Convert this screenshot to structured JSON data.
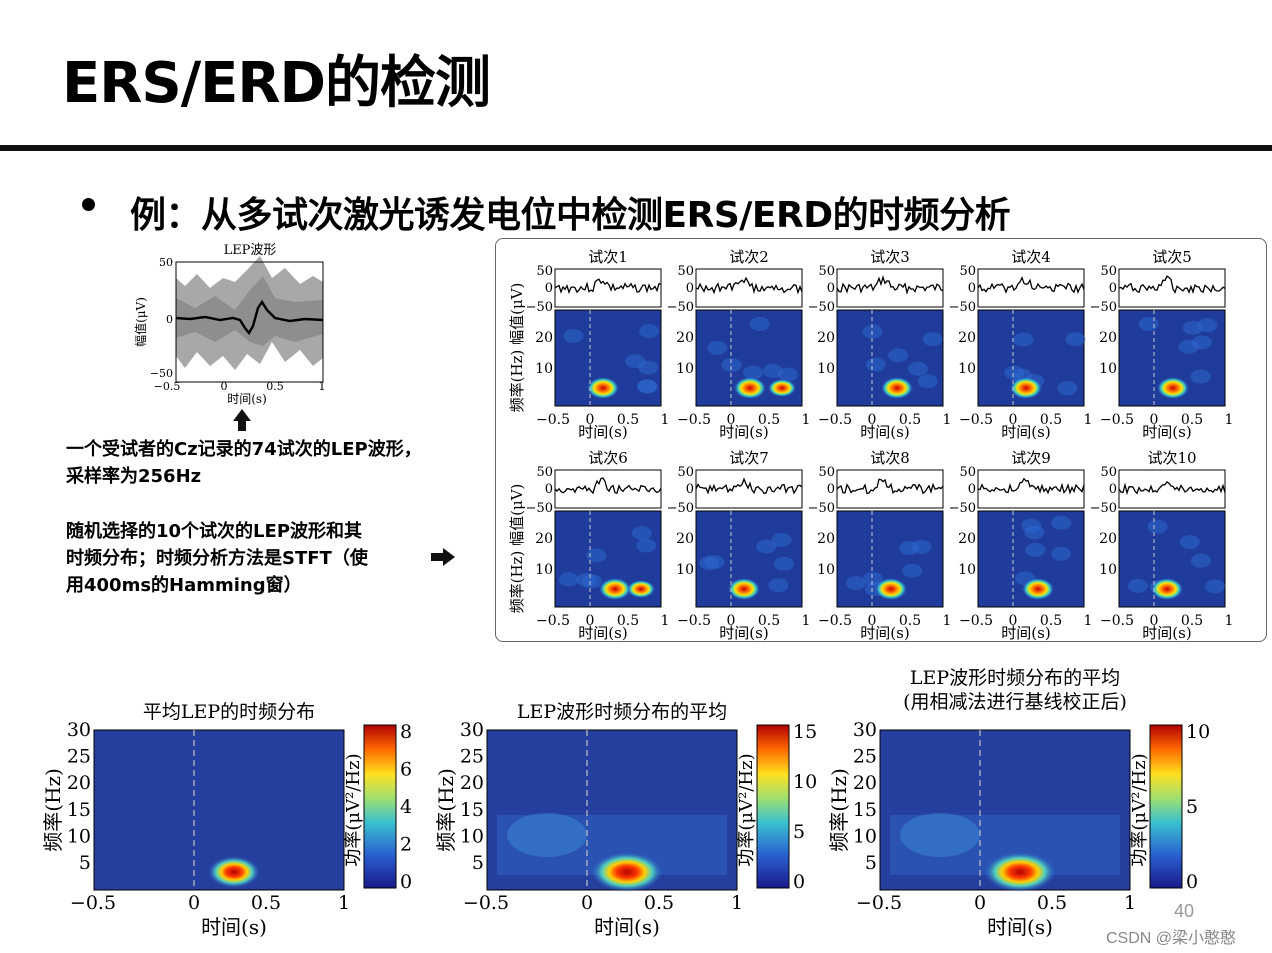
{
  "slide": {
    "title": "ERS/ERD的检测",
    "bullet": "例：从多试次激光诱发电位中检测ERS/ERD的时频分析",
    "note1_line1": "一个受试者的Cz记录的74试次的LEP波形，",
    "note1_line2": "采样率为256Hz",
    "note2_line1": "随机选择的10个试次的LEP波形和其",
    "note2_line2": "时频分布；时频分析方法是STFT（使",
    "note2_line3": "用400ms的Hamming窗）",
    "page_number": "40",
    "watermark": "CSDN @梁小憨憨"
  },
  "lep_plot": {
    "title": "LEP波形",
    "ylabel": "幅值(μV)",
    "xlabel": "时间(s)",
    "yticks": [
      "50",
      "0",
      "−50"
    ],
    "xticks": [
      "−0.5",
      "0",
      "0.5",
      "1"
    ]
  },
  "trials": {
    "titles": [
      "试次1",
      "试次2",
      "试次3",
      "试次4",
      "试次5",
      "试次6",
      "试次7",
      "试次8",
      "试次9",
      "试次10"
    ],
    "amp_yticks": [
      "50",
      "0",
      "−50"
    ],
    "freq_yticks": [
      "20",
      "10"
    ],
    "xticks": [
      "−0.5",
      "0",
      "0.5",
      "1"
    ],
    "xlabel": "时间(s)",
    "ylabel_amp": "幅值(μV)",
    "ylabel_freq": "频率(Hz)"
  },
  "bottom_maps": [
    {
      "title_line1": "平均LEP的时频分布",
      "title_line2": "",
      "cbar_ticks": [
        "8",
        "6",
        "4",
        "2",
        "0"
      ]
    },
    {
      "title_line1": "LEP波形时频分布的平均",
      "title_line2": "",
      "cbar_ticks": [
        "15",
        "10",
        "5",
        "0"
      ]
    },
    {
      "title_line1": "LEP波形时频分布的平均",
      "title_line2": "(用相减法进行基线校正后)",
      "cbar_ticks": [
        "10",
        "5",
        "0"
      ]
    }
  ],
  "bottom_axes": {
    "yticks": [
      "30",
      "25",
      "20",
      "15",
      "10",
      "5"
    ],
    "xticks": [
      "−0.5",
      "0",
      "0.5",
      "1"
    ],
    "xlabel": "时间(s)",
    "ylabel": "频率(Hz)",
    "cbar_label": "功率(μV²/Hz)"
  },
  "colors": {
    "map_bg": "#1f3c9c",
    "hot": "#b40000",
    "rule": "#111111"
  }
}
